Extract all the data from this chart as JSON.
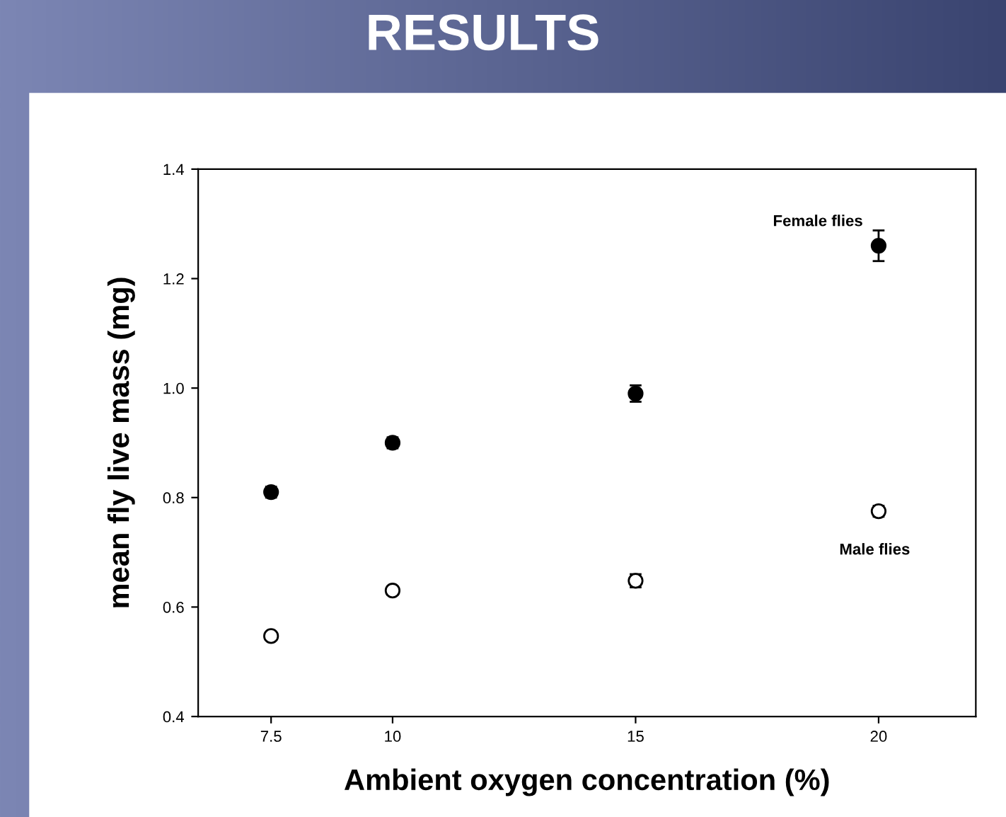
{
  "chart_data": {
    "type": "scatter",
    "title": "RESULTS",
    "xlabel": "Ambient oxygen concentration (%)",
    "ylabel": "mean fly live mass (mg)",
    "x": [
      7.5,
      10,
      15,
      20
    ],
    "series": [
      {
        "name": "Female flies",
        "color": "#000000",
        "marker": "circle",
        "values": [
          0.81,
          0.9,
          0.99,
          1.26
        ],
        "errors": [
          0.01,
          0.01,
          0.015,
          0.028
        ]
      },
      {
        "name": "Male flies",
        "color": "#ffffff",
        "marker": "circle",
        "values": [
          0.547,
          0.63,
          0.648,
          0.775
        ],
        "errors": [
          0.006,
          0.008,
          0.012,
          0.01
        ]
      }
    ],
    "xlim": [
      6,
      22
    ],
    "ylim": [
      0.4,
      1.4
    ],
    "xticks": [
      7.5,
      10,
      15,
      20
    ],
    "yticks": [
      {
        "value": 0.4,
        "label": "0.4"
      },
      {
        "value": 0.6,
        "label": "0.6"
      },
      {
        "value": 0.8,
        "label": "0.8"
      },
      {
        "value": 1.0,
        "label": "1.0"
      },
      {
        "value": 1.2,
        "label": "1.2"
      },
      {
        "value": 1.4,
        "label": "1.4"
      }
    ],
    "grid": false,
    "legend": false
  }
}
